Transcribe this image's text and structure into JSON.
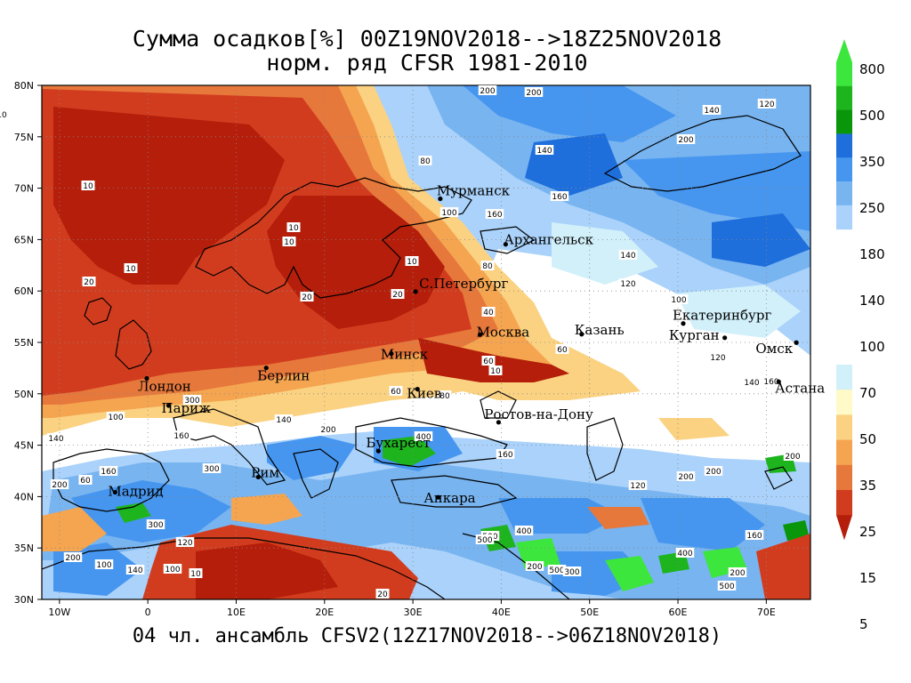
{
  "title": {
    "line1": "Сумма осадков[%] 00Z19NOV2018-->18Z25NOV2018",
    "line2": "норм. ряд CFSR 1981-2010"
  },
  "footer": "04 чл. ансамбль CFSV2(12Z17NOV2018-->06Z18NOV2018)",
  "axes": {
    "lat_labels": [
      "80N",
      "75N",
      "70N",
      "65N",
      "60N",
      "55N",
      "50N",
      "45N",
      "40N",
      "35N",
      "30N"
    ],
    "lon_labels": [
      "10W",
      "0",
      "10E",
      "20E",
      "30E",
      "40E",
      "50E",
      "60E",
      "70E"
    ]
  },
  "cities": [
    {
      "name": "Мурманск",
      "lon": 33.1,
      "lat": 68.97
    },
    {
      "name": "Архангельск",
      "lon": 40.5,
      "lat": 64.54
    },
    {
      "name": "С.Петербург",
      "lon": 30.3,
      "lat": 59.94
    },
    {
      "name": "Москва",
      "lon": 37.6,
      "lat": 55.75
    },
    {
      "name": "Казань",
      "lon": 49.1,
      "lat": 55.8
    },
    {
      "name": "Екатеринбург",
      "lon": 60.6,
      "lat": 56.84
    },
    {
      "name": "Курган",
      "lon": 65.3,
      "lat": 55.45
    },
    {
      "name": "Омск",
      "lon": 73.4,
      "lat": 54.98
    },
    {
      "name": "Астана",
      "lon": 71.4,
      "lat": 51.17
    },
    {
      "name": "Минск",
      "lon": 27.56,
      "lat": 53.9
    },
    {
      "name": "Берлин",
      "lon": 13.4,
      "lat": 52.52
    },
    {
      "name": "Лондон",
      "lon": -0.12,
      "lat": 51.5
    },
    {
      "name": "Париж",
      "lon": 2.35,
      "lat": 48.86
    },
    {
      "name": "Киев",
      "lon": 30.52,
      "lat": 50.45
    },
    {
      "name": "Ростов-на-Дону",
      "lon": 39.7,
      "lat": 47.23
    },
    {
      "name": "Бухарест",
      "lon": 26.1,
      "lat": 44.43
    },
    {
      "name": "Рим",
      "lon": 12.5,
      "lat": 41.9
    },
    {
      "name": "Мадрид",
      "lon": -3.7,
      "lat": 40.42
    },
    {
      "name": "Анкара",
      "lon": 32.85,
      "lat": 39.93
    }
  ],
  "colorbar": {
    "labels": [
      "800",
      "500",
      "350",
      "250",
      "180",
      "140",
      "100",
      "70",
      "50",
      "35",
      "25",
      "15",
      "5"
    ],
    "colors": [
      "#3ce63c",
      "#1eb41e",
      "#0a960a",
      "#1e6edc",
      "#4696f0",
      "#78b4f0",
      "#aad2fa",
      "#d2f0fa",
      "#fffac8",
      "#fad282",
      "#f5a550",
      "#e6783c",
      "#d23c1e",
      "#b41e0a"
    ]
  },
  "contour_labels": [
    "10",
    "20",
    "40",
    "60",
    "80",
    "100",
    "120",
    "140",
    "160",
    "200",
    "300",
    "400",
    "500"
  ]
}
